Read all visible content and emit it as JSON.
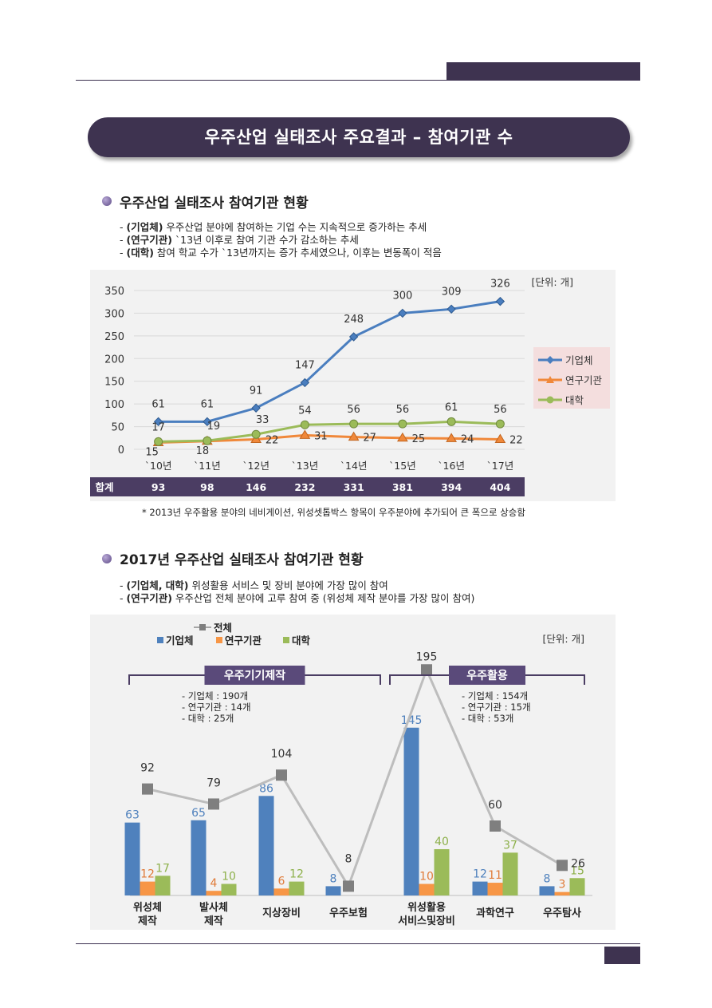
{
  "banner": {
    "title": "우주산업 실태조사 주요결과 – 참여기관 수"
  },
  "section1": {
    "title": "우주산업 실태조사 참여기관 현황",
    "lines": [
      {
        "bold": "(기업체)",
        "text": " 우주산업 분야에 참여하는 기업 수는 지속적으로 증가하는 추세"
      },
      {
        "bold": "(연구기관)",
        "text": " `13년 이후로 참여 기관 수가 감소하는 추세"
      },
      {
        "bold": "(대학)",
        "text": " 참여 학교 수가 `13년까지는 증가 추세였으나, 이후는 변동폭이 적음"
      }
    ],
    "unit": "[단위: 개]",
    "total_label": "합계",
    "totals": [
      "93",
      "98",
      "146",
      "232",
      "331",
      "381",
      "394",
      "404"
    ],
    "note": "* 2013년 우주활용 분야의 네비게이션, 위성셋톱박스 항목이 우주분야에 추가되어 큰 폭으로 상승함"
  },
  "section2": {
    "title": "2017년 우주산업 실태조사 참여기관 현황",
    "lines": [
      {
        "bold": "(기업체, 대학)",
        "text": " 위성활용 서비스 및 장비 분야에 가장 많이 참여"
      },
      {
        "bold": "(연구기관)",
        "text": " 우주산업 전체 분야에 고루 참여 중 (위성체 제작 분야를 가장 많이 참여)"
      }
    ],
    "unit": "[단위: 개]",
    "group1": {
      "label": "우주기기제작",
      "notes": [
        "- 기업체 : 190개",
        "- 연구기관 : 14개",
        "- 대학 : 25개"
      ]
    },
    "group2": {
      "label": "우주활용",
      "notes": [
        "- 기업체 : 154개",
        "- 연구기관 : 15개",
        "- 대학 : 53개"
      ]
    }
  },
  "chart_data": [
    {
      "type": "line",
      "categories": [
        "`10년",
        "`11년",
        "`12년",
        "`13년",
        "`14년",
        "`15년",
        "`16년",
        "`17년"
      ],
      "series": [
        {
          "name": "기업체",
          "values": [
            61,
            61,
            91,
            147,
            248,
            300,
            309,
            326
          ],
          "color": "#4a7ebf",
          "marker": "diamond"
        },
        {
          "name": "연구기관",
          "values": [
            15,
            18,
            22,
            31,
            27,
            25,
            24,
            22
          ],
          "color": "#f0883a",
          "marker": "triangle"
        },
        {
          "name": "대학",
          "values": [
            17,
            19,
            33,
            54,
            56,
            56,
            61,
            56
          ],
          "color": "#9bbb59",
          "marker": "circle"
        }
      ],
      "ylim": [
        0,
        350
      ],
      "yticks": [
        "0",
        "50",
        "100",
        "150",
        "200",
        "250",
        "300",
        "350"
      ],
      "grid": true,
      "legend": "right"
    },
    {
      "type": "bar",
      "categories": [
        "위성체 제작",
        "발사체 제작",
        "지상장비",
        "우주보험",
        "위성활용 서비스및장비",
        "과학연구",
        "우주탐사"
      ],
      "category_lines": [
        [
          "위성체",
          "제작"
        ],
        [
          "발사체",
          "제작"
        ],
        [
          "지상장비"
        ],
        [
          "우주보험"
        ],
        [
          "위성활용",
          "서비스및장비"
        ],
        [
          "과학연구"
        ],
        [
          "우주탐사"
        ]
      ],
      "series": [
        {
          "name": "기업체",
          "values": [
            63,
            65,
            86,
            8,
            145,
            12,
            8
          ],
          "color": "#4f81bd"
        },
        {
          "name": "연구기관",
          "values": [
            12,
            4,
            6,
            null,
            10,
            11,
            3
          ],
          "color": "#f79646"
        },
        {
          "name": "대학",
          "values": [
            17,
            10,
            12,
            null,
            40,
            37,
            15
          ],
          "color": "#9bbb59"
        },
        {
          "name": "전체",
          "type": "line",
          "values": [
            92,
            79,
            104,
            8,
            195,
            60,
            26
          ],
          "color": "#a6a6a6"
        }
      ],
      "ylim": [
        0,
        200
      ],
      "legend": "top-left"
    }
  ]
}
